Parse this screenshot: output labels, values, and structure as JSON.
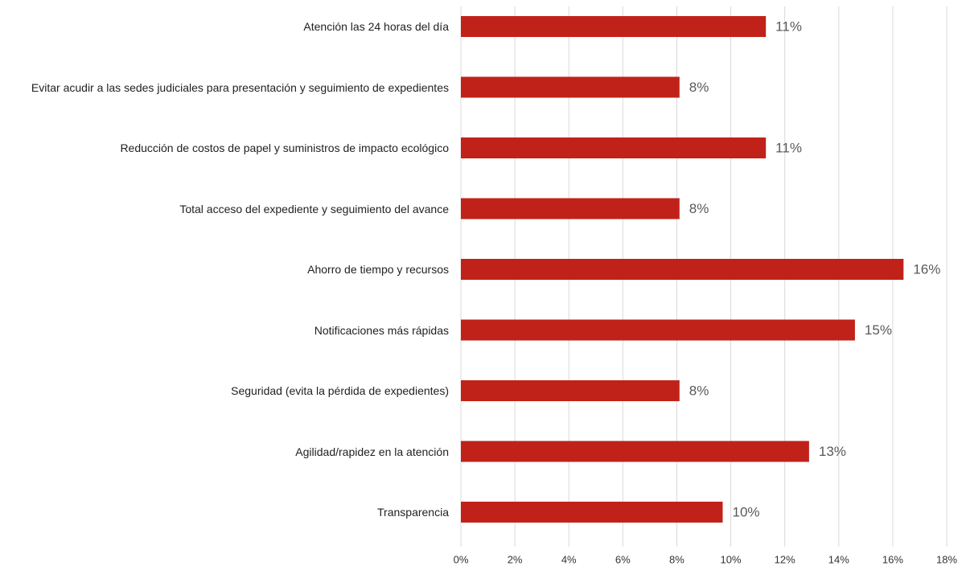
{
  "chart_data": {
    "type": "bar",
    "orientation": "horizontal",
    "categories": [
      "Atención las 24 horas del día",
      "Evitar acudir a las sedes judiciales para presentación y seguimiento de expedientes",
      "Reducción de costos de papel y suministros de impacto ecológico",
      "Total acceso del expediente y seguimiento del avance",
      "Ahorro de tiempo y recursos",
      "Notificaciones más rápidas",
      "Seguridad (evita la pérdida de expedientes)",
      "Agilidad/rapidez en la atención",
      "Transparencia"
    ],
    "values": [
      11.3,
      8.1,
      11.3,
      8.1,
      16.4,
      14.6,
      8.1,
      12.9,
      9.7
    ],
    "value_labels": [
      "11%",
      "8%",
      "11%",
      "8%",
      "16%",
      "15%",
      "8%",
      "13%",
      "10%"
    ],
    "color": "#c0221a",
    "xlim": [
      0,
      18
    ],
    "xticks": [
      {
        "value": 0,
        "label": "0%"
      },
      {
        "value": 2,
        "label": "2%"
      },
      {
        "value": 4,
        "label": "4%"
      },
      {
        "value": 6,
        "label": "6%"
      },
      {
        "value": 8,
        "label": "8%"
      },
      {
        "value": 10,
        "label": "10%"
      },
      {
        "value": 12,
        "label": "12%"
      },
      {
        "value": 14,
        "label": "14%"
      },
      {
        "value": 16,
        "label": "16%"
      },
      {
        "value": 18,
        "label": "18%"
      }
    ],
    "grid": true
  }
}
